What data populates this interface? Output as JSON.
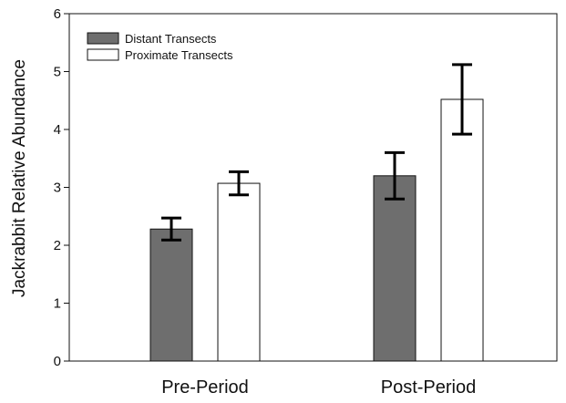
{
  "chart_data": {
    "type": "bar",
    "title": "",
    "xlabel": "",
    "ylabel": "Jackrabbit Relative Abundance",
    "ylim": [
      0,
      6
    ],
    "yticks": [
      0,
      1,
      2,
      3,
      4,
      5,
      6
    ],
    "categories": [
      "Pre-Period",
      "Post-Period"
    ],
    "grid": false,
    "legend_position": "top-left",
    "series": [
      {
        "name": "Distant Transects",
        "color": "#6e6e6e",
        "values": [
          2.28,
          3.2
        ],
        "error": [
          0.19,
          0.4
        ]
      },
      {
        "name": "Proximate Transects",
        "color": "#ffffff",
        "values": [
          3.07,
          4.52
        ],
        "error": [
          0.2,
          0.6
        ]
      }
    ]
  }
}
